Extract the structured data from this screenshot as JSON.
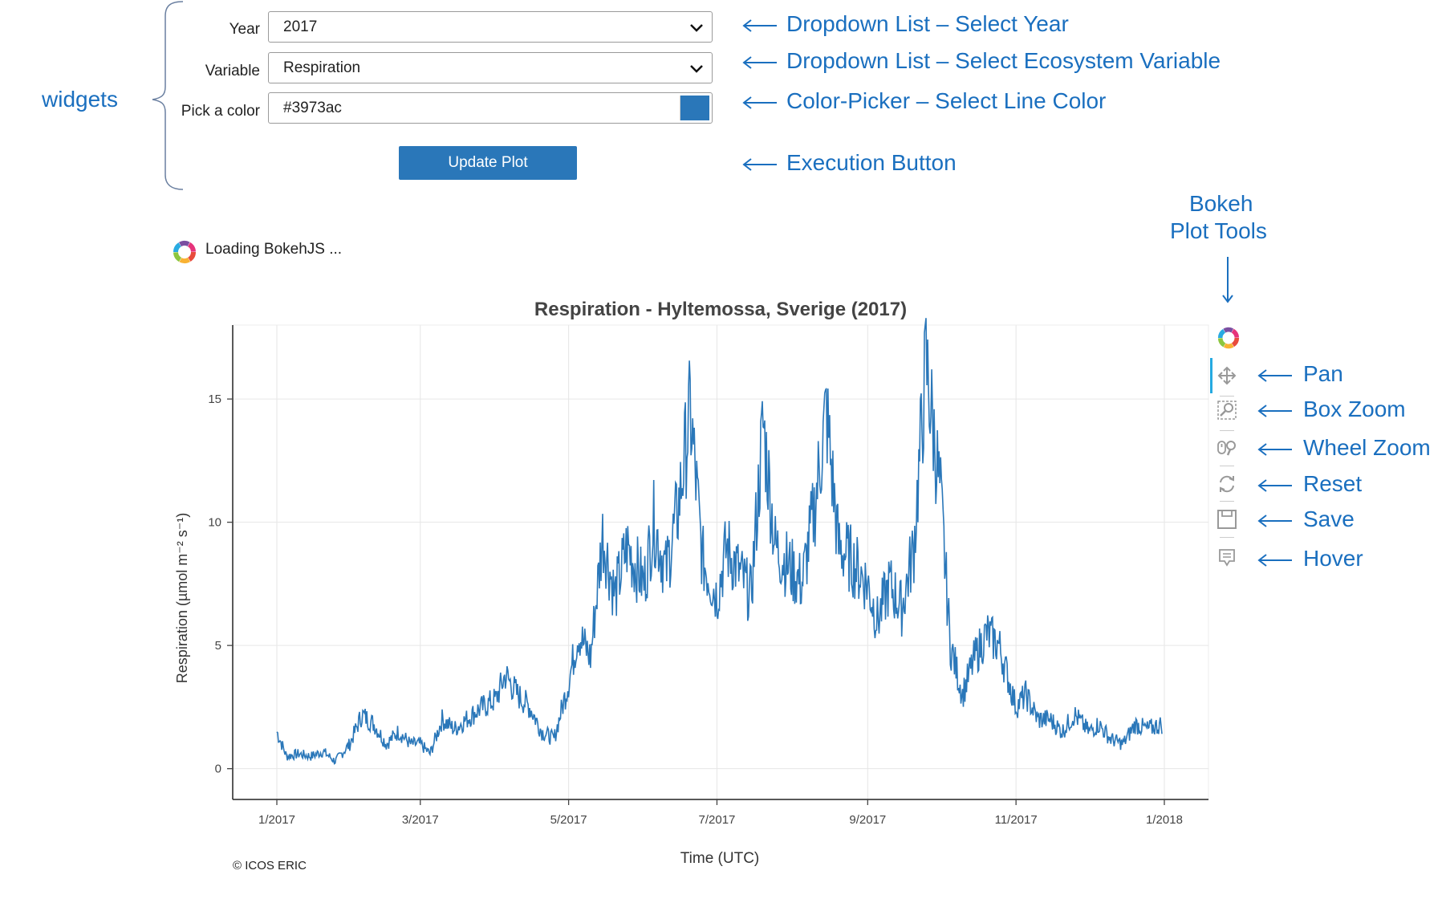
{
  "widgets": {
    "annotation": "widgets",
    "year": {
      "label": "Year",
      "value": "2017"
    },
    "variable": {
      "label": "Variable",
      "value": "Respiration"
    },
    "color": {
      "label": "Pick a color",
      "value": "#3973ac",
      "swatch": "#2a77b9"
    },
    "update_button": "Update Plot"
  },
  "annotations": {
    "year_dropdown": "Dropdown List – Select Year",
    "variable_dropdown": "Dropdown List – Select Ecosystem Variable",
    "color_picker": "Color-Picker – Select Line Color",
    "button": "Execution Button",
    "tools_line1": "Bokeh",
    "tools_line2": "Plot Tools",
    "pan": "Pan",
    "box_zoom": "Box Zoom",
    "wheel_zoom": "Wheel Zoom",
    "reset": "Reset",
    "save": "Save",
    "hover": "Hover"
  },
  "loading_text": "Loading BokehJS ...",
  "copyright": "© ICOS ERIC",
  "colors": {
    "annotation": "#1a6fbf",
    "line": "#2a77b9",
    "button": "#2a77b9",
    "toolbar_active": "#26aae1"
  },
  "chart_data": {
    "type": "line",
    "title": "Respiration - Hyltemossa, Sverige (2017)",
    "xlabel": "Time (UTC)",
    "ylabel": "Respiration (µmol m⁻² s⁻¹)",
    "x_ticks": [
      "1/2017",
      "3/2017",
      "5/2017",
      "7/2017",
      "9/2017",
      "11/2017",
      "1/2018"
    ],
    "y_ticks": [
      0,
      5,
      10,
      15
    ],
    "xlim": [
      "2017-01-01",
      "2018-01-01"
    ],
    "ylim": [
      -0.5,
      18
    ],
    "grid": true,
    "series": [
      {
        "color": "#2a77b9",
        "points": [
          [
            "2017-01-01",
            1.5
          ],
          [
            "2017-01-05",
            0.5
          ],
          [
            "2017-01-10",
            0.6
          ],
          [
            "2017-01-15",
            0.5
          ],
          [
            "2017-01-20",
            0.7
          ],
          [
            "2017-01-25",
            0.3
          ],
          [
            "2017-01-31",
            1.0
          ],
          [
            "2017-02-05",
            2.2
          ],
          [
            "2017-02-10",
            1.8
          ],
          [
            "2017-02-15",
            1.0
          ],
          [
            "2017-02-20",
            1.5
          ],
          [
            "2017-02-25",
            1.0
          ],
          [
            "2017-03-01",
            1.0
          ],
          [
            "2017-03-05",
            0.6
          ],
          [
            "2017-03-10",
            2.0
          ],
          [
            "2017-03-15",
            1.6
          ],
          [
            "2017-03-20",
            2.0
          ],
          [
            "2017-03-25",
            2.4
          ],
          [
            "2017-04-01",
            2.8
          ],
          [
            "2017-04-05",
            3.8
          ],
          [
            "2017-04-10",
            3.0
          ],
          [
            "2017-04-15",
            2.5
          ],
          [
            "2017-04-20",
            1.5
          ],
          [
            "2017-04-25",
            1.2
          ],
          [
            "2017-05-01",
            3.5
          ],
          [
            "2017-05-05",
            5.5
          ],
          [
            "2017-05-10",
            4.5
          ],
          [
            "2017-05-15",
            9.5
          ],
          [
            "2017-05-20",
            7.0
          ],
          [
            "2017-05-25",
            9.0
          ],
          [
            "2017-06-01",
            7.5
          ],
          [
            "2017-06-05",
            10.0
          ],
          [
            "2017-06-10",
            8.0
          ],
          [
            "2017-06-15",
            10.5
          ],
          [
            "2017-06-20",
            14.5
          ],
          [
            "2017-06-25",
            8.5
          ],
          [
            "2017-07-01",
            7.0
          ],
          [
            "2017-07-05",
            9.0
          ],
          [
            "2017-07-10",
            8.0
          ],
          [
            "2017-07-15",
            7.0
          ],
          [
            "2017-07-20",
            14.0
          ],
          [
            "2017-07-25",
            9.0
          ],
          [
            "2017-08-01",
            8.0
          ],
          [
            "2017-08-05",
            7.5
          ],
          [
            "2017-08-10",
            10.5
          ],
          [
            "2017-08-15",
            14.5
          ],
          [
            "2017-08-20",
            9.0
          ],
          [
            "2017-08-25",
            8.5
          ],
          [
            "2017-09-01",
            7.5
          ],
          [
            "2017-09-05",
            6.0
          ],
          [
            "2017-09-10",
            7.5
          ],
          [
            "2017-09-15",
            6.5
          ],
          [
            "2017-09-20",
            9.0
          ],
          [
            "2017-09-25",
            16.5
          ],
          [
            "2017-10-01",
            11.0
          ],
          [
            "2017-10-05",
            5.0
          ],
          [
            "2017-10-10",
            3.0
          ],
          [
            "2017-10-15",
            4.5
          ],
          [
            "2017-10-20",
            5.5
          ],
          [
            "2017-10-25",
            5.0
          ],
          [
            "2017-11-01",
            2.5
          ],
          [
            "2017-11-05",
            3.0
          ],
          [
            "2017-11-10",
            2.0
          ],
          [
            "2017-11-15",
            2.0
          ],
          [
            "2017-11-20",
            1.5
          ],
          [
            "2017-11-25",
            2.2
          ],
          [
            "2017-12-01",
            1.5
          ],
          [
            "2017-12-05",
            1.8
          ],
          [
            "2017-12-10",
            1.2
          ],
          [
            "2017-12-15",
            1.0
          ],
          [
            "2017-12-20",
            1.8
          ],
          [
            "2017-12-25",
            1.6
          ],
          [
            "2017-12-31",
            1.8
          ]
        ]
      }
    ]
  }
}
